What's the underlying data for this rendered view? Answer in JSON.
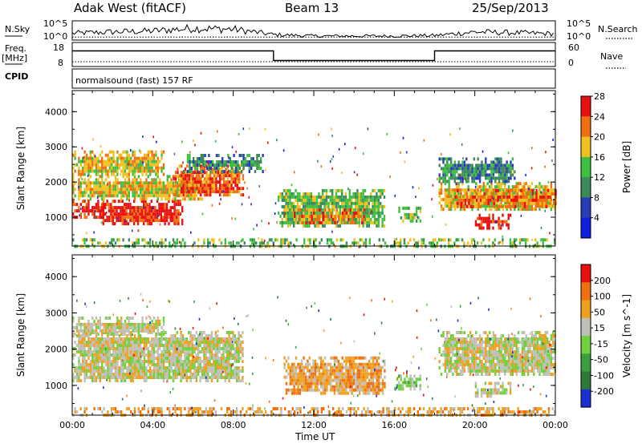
{
  "header": {
    "station": "Adak West (fitACF)",
    "beam": "Beam 13",
    "date": "25/Sep/2013"
  },
  "panels": {
    "nsky_label": "N.Sky",
    "nsearch_label": "N.Search",
    "noise_left_ticks": [
      "10^5",
      "10^0"
    ],
    "noise_right_ticks": [
      "10^5",
      "10^0"
    ],
    "freq_label_top": "Freq.",
    "freq_label_unit": "[MHz]",
    "freq_ticks": [
      "18",
      "8"
    ],
    "nave_label": "Nave",
    "nave_ticks": [
      "60",
      "0"
    ],
    "cpid_label": "CPID",
    "cpid_text": "normalsound (fast) 157 RF"
  },
  "chart_data": [
    {
      "type": "line",
      "title": "",
      "series": [
        {
          "name": "N.Sky",
          "x": [
            "00:00",
            "02:00",
            "04:00",
            "06:00",
            "08:00",
            "10:00",
            "12:00",
            "14:00",
            "16:00",
            "18:00",
            "20:00",
            "22:00",
            "24:00"
          ],
          "values": [
            1.5,
            1.8,
            2.0,
            2.6,
            2.4,
            1.2,
            0.9,
            0.9,
            0.9,
            1.0,
            1.8,
            1.6,
            1.4
          ]
        },
        {
          "name": "N.Search",
          "x": [
            "00:00",
            "24:00"
          ],
          "values": [
            0.8,
            0.8
          ]
        }
      ],
      "ylim": [
        0,
        5
      ]
    },
    {
      "type": "line",
      "series": [
        {
          "name": "Freq.",
          "x": [
            "00:00",
            "10:00",
            "10:00",
            "18:00",
            "18:00",
            "24:00"
          ],
          "values": [
            14.5,
            14.5,
            10.5,
            10.5,
            14.5,
            14.5
          ]
        },
        {
          "name": "Nave",
          "x": [
            "00:00",
            "24:00"
          ],
          "values": [
            10,
            10
          ]
        }
      ],
      "ylim": [
        8,
        18
      ]
    },
    {
      "type": "heatmap",
      "ylabel": "Slant Range [km]",
      "xlabel": "Time UT",
      "x_ticks": [
        "00:00",
        "04:00",
        "08:00",
        "12:00",
        "16:00",
        "20:00",
        "00:00"
      ],
      "y_ticks": [
        "1000",
        "2000",
        "3000",
        "4000"
      ],
      "xlim": [
        0,
        24
      ],
      "ylim": [
        180,
        4600
      ],
      "colorbar": {
        "label": "Power [dB]",
        "ticks": [
          "4",
          "8",
          "12",
          "16",
          "20",
          "24",
          "28"
        ],
        "colors": [
          "#1020e0",
          "#2a3cb8",
          "#3a8a5a",
          "#3fbf3f",
          "#f0c020",
          "#f07010",
          "#e81010"
        ]
      },
      "regions": [
        {
          "t0": 0.0,
          "t1": 1.5,
          "r0": 1000,
          "r1": 1500,
          "level": 6
        },
        {
          "t0": 1.5,
          "t1": 5.5,
          "r0": 800,
          "r1": 1500,
          "level": 6
        },
        {
          "t0": 0.0,
          "t1": 6.5,
          "r0": 1500,
          "r1": 2200,
          "level": 4
        },
        {
          "t0": 5.0,
          "t1": 8.5,
          "r0": 1600,
          "r1": 2500,
          "level": 5
        },
        {
          "t0": 0.0,
          "t1": 4.5,
          "r0": 2200,
          "r1": 2900,
          "level": 4
        },
        {
          "t0": 5.5,
          "t1": 9.5,
          "r0": 2300,
          "r1": 2800,
          "level": 2
        },
        {
          "t0": 10.2,
          "t1": 15.5,
          "r0": 750,
          "r1": 1800,
          "level": 3
        },
        {
          "t0": 11.0,
          "t1": 14.5,
          "r0": 850,
          "r1": 1250,
          "level": 5
        },
        {
          "t0": 16.2,
          "t1": 17.3,
          "r0": 850,
          "r1": 1300,
          "level": 3
        },
        {
          "t0": 18.2,
          "t1": 24.0,
          "r0": 1200,
          "r1": 2000,
          "level": 4
        },
        {
          "t0": 19.0,
          "t1": 24.0,
          "r0": 1300,
          "r1": 1800,
          "level": 5
        },
        {
          "t0": 18.2,
          "t1": 22.0,
          "r0": 2000,
          "r1": 2700,
          "level": 2
        },
        {
          "t0": 20.0,
          "t1": 21.8,
          "r0": 700,
          "r1": 1100,
          "level": 6
        },
        {
          "t0": 0.0,
          "t1": 24.0,
          "r0": 180,
          "r1": 400,
          "level": 3
        }
      ]
    },
    {
      "type": "heatmap",
      "ylabel": "Slant Range [km]",
      "xlabel": "Time UT",
      "x_ticks": [
        "00:00",
        "04:00",
        "08:00",
        "12:00",
        "16:00",
        "20:00",
        "00:00"
      ],
      "y_ticks": [
        "1000",
        "2000",
        "3000",
        "4000"
      ],
      "xlim": [
        0,
        24
      ],
      "ylim": [
        180,
        4600
      ],
      "colorbar": {
        "label": "Velocity [m s^-1]",
        "ticks": [
          "200",
          "100",
          "50",
          "15",
          "-15",
          "-50",
          "-100",
          "-200"
        ],
        "colors": [
          "#1a30d0",
          "#2e7a3a",
          "#3aa040",
          "#70d040",
          "#c0c0b8",
          "#f0a020",
          "#f07010",
          "#e81010"
        ]
      },
      "regions": [
        {
          "t0": 0.0,
          "t1": 8.5,
          "r0": 1100,
          "r1": 2500,
          "level": 4
        },
        {
          "t0": 0.0,
          "t1": 4.5,
          "r0": 2400,
          "r1": 2900,
          "level": 4
        },
        {
          "t0": 10.5,
          "t1": 15.5,
          "r0": 750,
          "r1": 1800,
          "level": 5
        },
        {
          "t0": 16.0,
          "t1": 17.3,
          "r0": 900,
          "r1": 1300,
          "level": 3
        },
        {
          "t0": 18.2,
          "t1": 24.0,
          "r0": 1300,
          "r1": 2500,
          "level": 4
        },
        {
          "t0": 20.0,
          "t1": 21.8,
          "r0": 700,
          "r1": 1100,
          "level": 4
        },
        {
          "t0": 0.0,
          "t1": 24.0,
          "r0": 180,
          "r1": 400,
          "level": 5
        }
      ]
    }
  ]
}
